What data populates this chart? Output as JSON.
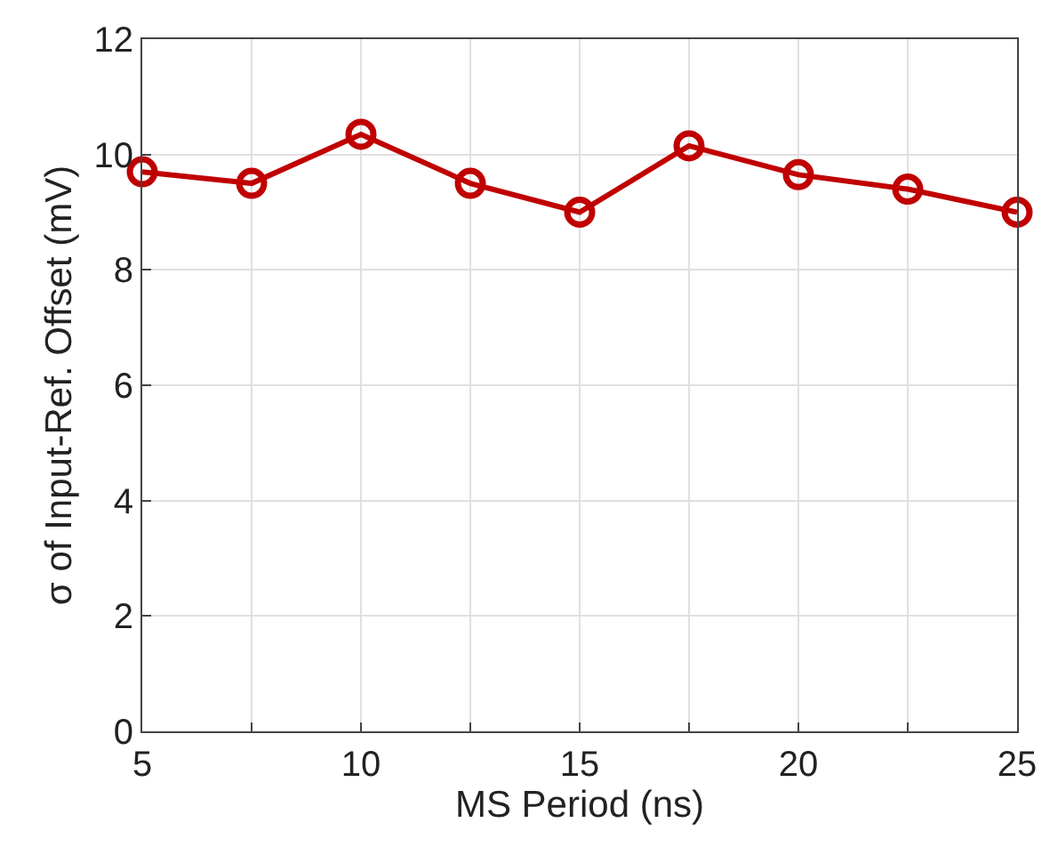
{
  "chart_data": {
    "type": "line",
    "xlabel": "MS Period (ns)",
    "ylabel": "σ of Input-Ref. Offset (mV)",
    "x": [
      5,
      7.5,
      10,
      12.5,
      15,
      17.5,
      20,
      22.5,
      25
    ],
    "series": [
      {
        "color": "#c00000",
        "values": [
          9.7,
          9.5,
          10.35,
          9.5,
          9.0,
          10.15,
          9.65,
          9.4,
          9.0
        ]
      }
    ],
    "xlim": [
      5,
      25
    ],
    "xticks": [
      5,
      {
        "value": 7.5,
        "label": null
      },
      10,
      {
        "value": 12.5,
        "label": null
      },
      15,
      {
        "value": 17.5,
        "label": null
      },
      20,
      {
        "value": 22.5,
        "label": null
      },
      25
    ],
    "ylim": [
      0,
      12
    ],
    "yticks": [
      0,
      2,
      4,
      6,
      8,
      10,
      12
    ],
    "grid": true,
    "marker": "circle",
    "line_style": "solid"
  }
}
